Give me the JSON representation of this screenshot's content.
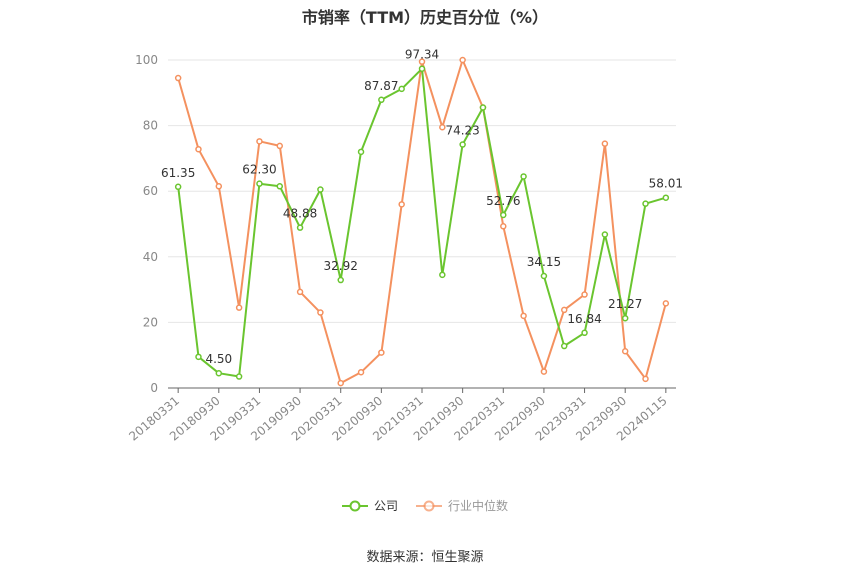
{
  "colors": {
    "company": "#6ac52f",
    "industry": "#f4915f",
    "axis": "#888888",
    "grid": "#e6e6e6",
    "text": "#333333"
  },
  "legend": {
    "company": "公司",
    "industry": "行业中位数"
  },
  "source": "数据来源：恒生聚源",
  "chart_data": {
    "type": "line",
    "title": "市销率（TTM）历史百分位（%）",
    "xlabel": "",
    "ylabel": "",
    "ylim": [
      0,
      100
    ],
    "yticks": [
      0,
      20,
      40,
      60,
      80,
      100
    ],
    "grid": true,
    "legend_position": "bottom",
    "x": [
      "20180331",
      "20180630",
      "20180930",
      "20181231",
      "20190331",
      "20190630",
      "20190930",
      "20191231",
      "20200331",
      "20200630",
      "20200930",
      "20201231",
      "20210331",
      "20210630",
      "20210930",
      "20211231",
      "20220331",
      "20220630",
      "20220930",
      "20221231",
      "20230331",
      "20230630",
      "20230930",
      "20231231",
      "20240115"
    ],
    "x_tick_labels": [
      "20180331",
      "20180930",
      "20190331",
      "20190930",
      "20200331",
      "20200930",
      "20210331",
      "20210930",
      "20220331",
      "20220930",
      "20230331",
      "20230930",
      "20240115"
    ],
    "series": [
      {
        "name": "公司",
        "values": [
          61.35,
          9.5,
          4.5,
          3.5,
          62.3,
          61.5,
          48.88,
          60.5,
          32.92,
          72.0,
          87.87,
          91.2,
          97.34,
          34.5,
          74.23,
          85.5,
          52.76,
          64.5,
          34.15,
          12.8,
          16.84,
          46.8,
          21.27,
          56.2,
          58.01
        ],
        "labels": {
          "0": "61.35",
          "2": "4.50",
          "4": "62.30",
          "6": "48.88",
          "8": "32.92",
          "10": "87.87",
          "12": "97.34",
          "14": "74.23",
          "16": "52.76",
          "18": "34.15",
          "20": "16.84",
          "22": "21.27",
          "24": "58.01"
        }
      },
      {
        "name": "行业中位数",
        "values": [
          94.5,
          72.8,
          61.5,
          24.5,
          75.2,
          73.8,
          29.3,
          23.0,
          1.5,
          4.8,
          10.8,
          56.0,
          99.5,
          79.5,
          100.0,
          85.5,
          49.3,
          22.0,
          5.0,
          23.8,
          28.5,
          74.5,
          11.2,
          2.8,
          25.8
        ]
      }
    ]
  }
}
